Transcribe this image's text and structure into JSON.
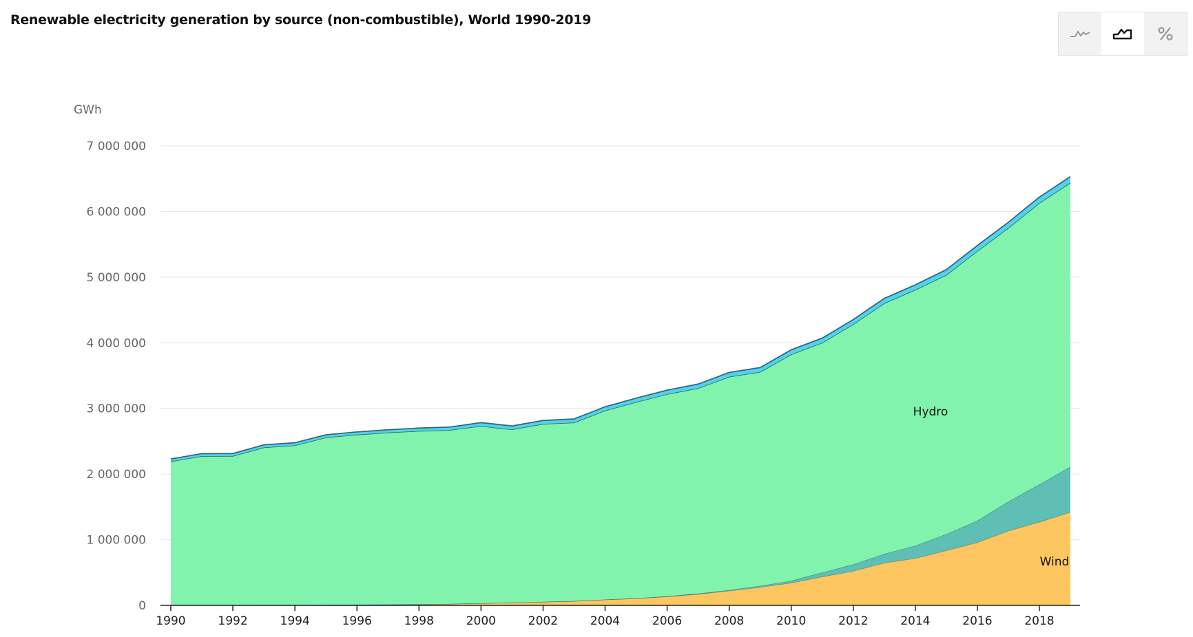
{
  "title": "Renewable electricity generation by source (non-combustible), World 1990-2019",
  "view_toggle": {
    "options": [
      {
        "icon": "line-chart-icon",
        "active": false
      },
      {
        "icon": "area-chart-icon",
        "active": true
      },
      {
        "icon": "percent-icon",
        "active": false
      }
    ]
  },
  "chart_data": {
    "type": "area",
    "stacked": true,
    "title": "Renewable electricity generation by source (non-combustible), World 1990-2019",
    "ylabel": "GWh",
    "ylim": [
      0,
      7000000
    ],
    "yticks": [
      0,
      1000000,
      2000000,
      3000000,
      4000000,
      5000000,
      6000000,
      7000000
    ],
    "ytick_labels": [
      "0",
      "1 000 000",
      "2 000 000",
      "3 000 000",
      "4 000 000",
      "5 000 000",
      "6 000 000",
      "7 000 000"
    ],
    "xticks": [
      1990,
      1992,
      1994,
      1996,
      1998,
      2000,
      2002,
      2004,
      2006,
      2008,
      2010,
      2012,
      2014,
      2016,
      2018
    ],
    "xtick_labels": [
      "1990",
      "1992",
      "1994",
      "1996",
      "1998",
      "2000",
      "2002",
      "2004",
      "2006",
      "2008",
      "2010",
      "2012",
      "2014",
      "2016",
      "2018"
    ],
    "grid": true,
    "x": [
      1990,
      1991,
      1992,
      1993,
      1994,
      1995,
      1996,
      1997,
      1998,
      1999,
      2000,
      2001,
      2002,
      2003,
      2004,
      2005,
      2006,
      2007,
      2008,
      2009,
      2010,
      2011,
      2012,
      2013,
      2014,
      2015,
      2016,
      2017,
      2018,
      2019
    ],
    "series": [
      {
        "name": "Wind",
        "color": "#fdc661",
        "label_shown": true,
        "values": [
          4000,
          4000,
          5000,
          6000,
          7000,
          8000,
          10000,
          12000,
          16000,
          21000,
          31000,
          38000,
          52000,
          63000,
          85000,
          104000,
          133000,
          171000,
          221000,
          276000,
          342000,
          437000,
          523000,
          646000,
          717000,
          834000,
          959000,
          1135000,
          1270000,
          1420000
        ]
      },
      {
        "color": "#5fbfb5",
        "label_shown": false,
        "values": [
          400,
          500,
          500,
          600,
          600,
          700,
          800,
          900,
          1000,
          1000,
          1000,
          2000,
          2000,
          2000,
          3000,
          4000,
          6000,
          8000,
          12000,
          20000,
          32000,
          64000,
          100000,
          137000,
          190000,
          250000,
          330000,
          445000,
          570000,
          690000
        ]
      },
      {
        "name": "Hydro",
        "color": "#82f3ad",
        "label_shown": true,
        "values": [
          2190000,
          2270000,
          2270000,
          2400000,
          2430000,
          2550000,
          2590000,
          2620000,
          2640000,
          2650000,
          2700000,
          2640000,
          2710000,
          2720000,
          2880000,
          2990000,
          3080000,
          3130000,
          3250000,
          3260000,
          3450000,
          3500000,
          3660000,
          3820000,
          3900000,
          3950000,
          4110000,
          4170000,
          4290000,
          4330000
        ]
      },
      {
        "color": "#4fd3f0",
        "label_shown": false,
        "values": [
          36000,
          37000,
          38000,
          39000,
          40000,
          40000,
          41000,
          42000,
          44000,
          45000,
          52000,
          53000,
          53000,
          55000,
          57000,
          59000,
          60000,
          62000,
          65000,
          67000,
          69000,
          70000,
          71000,
          73000,
          76000,
          80000,
          83000,
          86000,
          89000,
          92000
        ]
      }
    ],
    "annotations": [
      {
        "text": "Hydro",
        "series": "Hydro"
      },
      {
        "text": "Wind",
        "series": "Wind"
      }
    ]
  }
}
